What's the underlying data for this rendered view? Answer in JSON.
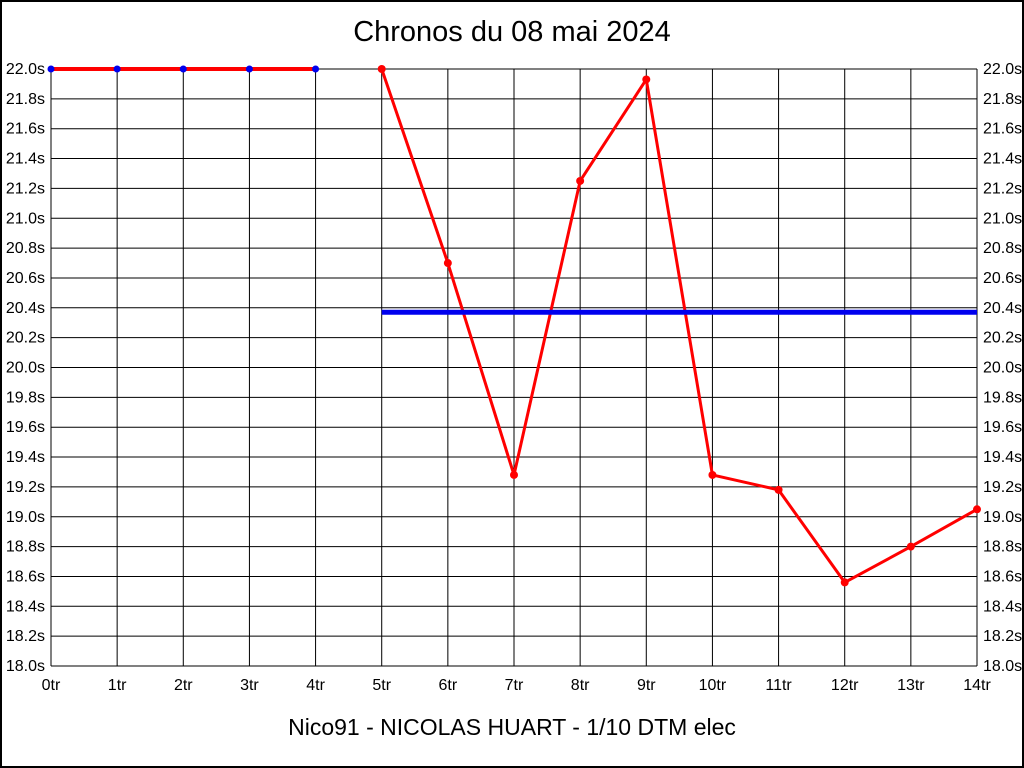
{
  "title": "Chronos du 08 mai 2024",
  "caption": "Nico91 - NICOLAS HUART - 1/10 DTM elec",
  "colors": {
    "grid": "#000000",
    "lap_line": "#ff0000",
    "opening_marker": "#0000ee",
    "lap_marker": "#ff0000",
    "reference_line": "#0000ee",
    "text": "#000000",
    "background": "#ffffff"
  },
  "chart_data": {
    "type": "line",
    "title": "Chronos du 08 mai 2024",
    "xlabel": "",
    "ylabel": "",
    "x_unit": "tr",
    "y_unit": "s",
    "x_labels": [
      "0tr",
      "1tr",
      "2tr",
      "3tr",
      "4tr",
      "5tr",
      "6tr",
      "7tr",
      "8tr",
      "9tr",
      "10tr",
      "11tr",
      "12tr",
      "13tr",
      "14tr"
    ],
    "ylim": [
      18.0,
      22.0
    ],
    "y_step": 0.2,
    "grid": "on",
    "legend": "none",
    "series": [
      {
        "name": "opening-laps-at-cap",
        "x": [
          0,
          1,
          2,
          3,
          4
        ],
        "values": [
          22.0,
          22.0,
          22.0,
          22.0,
          22.0
        ],
        "line_color": "#ff0000",
        "line_width": 4,
        "marker_color": "#0000ee",
        "marker_radius": 3.5
      },
      {
        "name": "lap-times",
        "x": [
          5,
          6,
          7,
          8,
          9,
          10,
          11,
          12,
          13,
          14
        ],
        "values": [
          22.0,
          20.7,
          19.28,
          21.25,
          21.93,
          19.28,
          19.18,
          18.56,
          18.8,
          19.05
        ],
        "line_color": "#ff0000",
        "line_width": 3,
        "marker_color": "#ff0000",
        "marker_radius": 4
      }
    ],
    "reference_line": {
      "name": "average-reference",
      "value": 20.37,
      "x_start": 5,
      "x_end": 14,
      "color": "#0000ee",
      "width": 5
    }
  }
}
